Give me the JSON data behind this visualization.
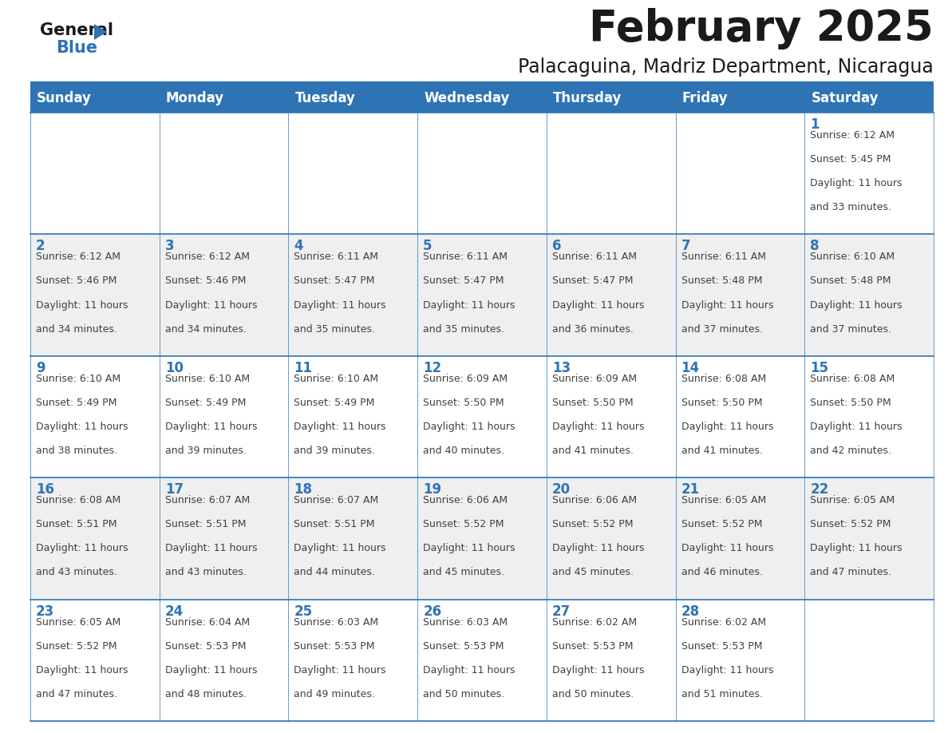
{
  "title": "February 2025",
  "subtitle": "Palacaguina, Madriz Department, Nicaragua",
  "header_bg": "#2e74b5",
  "header_text_color": "#ffffff",
  "cell_bg_white": "#ffffff",
  "cell_bg_light": "#efefef",
  "day_number_color": "#2e74b5",
  "text_color": "#404040",
  "line_color": "#2e74b5",
  "days_of_week": [
    "Sunday",
    "Monday",
    "Tuesday",
    "Wednesday",
    "Thursday",
    "Friday",
    "Saturday"
  ],
  "weeks": [
    [
      {
        "day": 0,
        "sunrise": "",
        "sunset": "",
        "daylight": ""
      },
      {
        "day": 0,
        "sunrise": "",
        "sunset": "",
        "daylight": ""
      },
      {
        "day": 0,
        "sunrise": "",
        "sunset": "",
        "daylight": ""
      },
      {
        "day": 0,
        "sunrise": "",
        "sunset": "",
        "daylight": ""
      },
      {
        "day": 0,
        "sunrise": "",
        "sunset": "",
        "daylight": ""
      },
      {
        "day": 0,
        "sunrise": "",
        "sunset": "",
        "daylight": ""
      },
      {
        "day": 1,
        "sunrise": "6:12 AM",
        "sunset": "5:45 PM",
        "daylight": "11 hours and 33 minutes."
      }
    ],
    [
      {
        "day": 2,
        "sunrise": "6:12 AM",
        "sunset": "5:46 PM",
        "daylight": "11 hours and 34 minutes."
      },
      {
        "day": 3,
        "sunrise": "6:12 AM",
        "sunset": "5:46 PM",
        "daylight": "11 hours and 34 minutes."
      },
      {
        "day": 4,
        "sunrise": "6:11 AM",
        "sunset": "5:47 PM",
        "daylight": "11 hours and 35 minutes."
      },
      {
        "day": 5,
        "sunrise": "6:11 AM",
        "sunset": "5:47 PM",
        "daylight": "11 hours and 35 minutes."
      },
      {
        "day": 6,
        "sunrise": "6:11 AM",
        "sunset": "5:47 PM",
        "daylight": "11 hours and 36 minutes."
      },
      {
        "day": 7,
        "sunrise": "6:11 AM",
        "sunset": "5:48 PM",
        "daylight": "11 hours and 37 minutes."
      },
      {
        "day": 8,
        "sunrise": "6:10 AM",
        "sunset": "5:48 PM",
        "daylight": "11 hours and 37 minutes."
      }
    ],
    [
      {
        "day": 9,
        "sunrise": "6:10 AM",
        "sunset": "5:49 PM",
        "daylight": "11 hours and 38 minutes."
      },
      {
        "day": 10,
        "sunrise": "6:10 AM",
        "sunset": "5:49 PM",
        "daylight": "11 hours and 39 minutes."
      },
      {
        "day": 11,
        "sunrise": "6:10 AM",
        "sunset": "5:49 PM",
        "daylight": "11 hours and 39 minutes."
      },
      {
        "day": 12,
        "sunrise": "6:09 AM",
        "sunset": "5:50 PM",
        "daylight": "11 hours and 40 minutes."
      },
      {
        "day": 13,
        "sunrise": "6:09 AM",
        "sunset": "5:50 PM",
        "daylight": "11 hours and 41 minutes."
      },
      {
        "day": 14,
        "sunrise": "6:08 AM",
        "sunset": "5:50 PM",
        "daylight": "11 hours and 41 minutes."
      },
      {
        "day": 15,
        "sunrise": "6:08 AM",
        "sunset": "5:50 PM",
        "daylight": "11 hours and 42 minutes."
      }
    ],
    [
      {
        "day": 16,
        "sunrise": "6:08 AM",
        "sunset": "5:51 PM",
        "daylight": "11 hours and 43 minutes."
      },
      {
        "day": 17,
        "sunrise": "6:07 AM",
        "sunset": "5:51 PM",
        "daylight": "11 hours and 43 minutes."
      },
      {
        "day": 18,
        "sunrise": "6:07 AM",
        "sunset": "5:51 PM",
        "daylight": "11 hours and 44 minutes."
      },
      {
        "day": 19,
        "sunrise": "6:06 AM",
        "sunset": "5:52 PM",
        "daylight": "11 hours and 45 minutes."
      },
      {
        "day": 20,
        "sunrise": "6:06 AM",
        "sunset": "5:52 PM",
        "daylight": "11 hours and 45 minutes."
      },
      {
        "day": 21,
        "sunrise": "6:05 AM",
        "sunset": "5:52 PM",
        "daylight": "11 hours and 46 minutes."
      },
      {
        "day": 22,
        "sunrise": "6:05 AM",
        "sunset": "5:52 PM",
        "daylight": "11 hours and 47 minutes."
      }
    ],
    [
      {
        "day": 23,
        "sunrise": "6:05 AM",
        "sunset": "5:52 PM",
        "daylight": "11 hours and 47 minutes."
      },
      {
        "day": 24,
        "sunrise": "6:04 AM",
        "sunset": "5:53 PM",
        "daylight": "11 hours and 48 minutes."
      },
      {
        "day": 25,
        "sunrise": "6:03 AM",
        "sunset": "5:53 PM",
        "daylight": "11 hours and 49 minutes."
      },
      {
        "day": 26,
        "sunrise": "6:03 AM",
        "sunset": "5:53 PM",
        "daylight": "11 hours and 50 minutes."
      },
      {
        "day": 27,
        "sunrise": "6:02 AM",
        "sunset": "5:53 PM",
        "daylight": "11 hours and 50 minutes."
      },
      {
        "day": 28,
        "sunrise": "6:02 AM",
        "sunset": "5:53 PM",
        "daylight": "11 hours and 51 minutes."
      },
      {
        "day": 0,
        "sunrise": "",
        "sunset": "",
        "daylight": ""
      }
    ]
  ],
  "fig_width": 11.88,
  "fig_height": 9.18,
  "dpi": 100,
  "title_fontsize": 38,
  "subtitle_fontsize": 17,
  "header_fontsize": 12,
  "day_num_fontsize": 12,
  "cell_text_fontsize": 9
}
